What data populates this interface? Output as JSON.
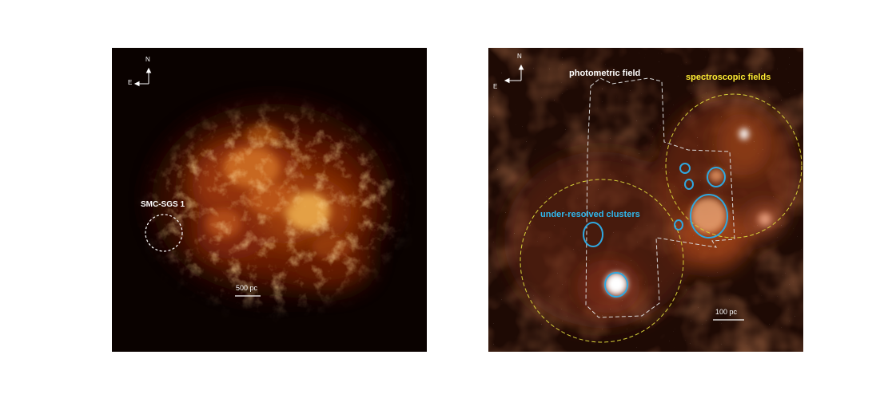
{
  "left_panel": {
    "compass": {
      "north": "N",
      "east": "E"
    },
    "region_label": "SMC-SGS 1",
    "scale_bar_label": "500 pc"
  },
  "right_panel": {
    "compass": {
      "north": "N",
      "east": "E"
    },
    "photometric_label": "photometric field",
    "spectroscopic_label": "spectroscopic fields",
    "clusters_label": "under-resolved clusters",
    "scale_bar_label": "100 pc"
  },
  "colors": {
    "photometric_outline": "#d8d8d8",
    "spectroscopic_outline": "#d6d23a",
    "cluster_outline": "#2fa8e0",
    "left_region_outline": "#ffffff"
  }
}
